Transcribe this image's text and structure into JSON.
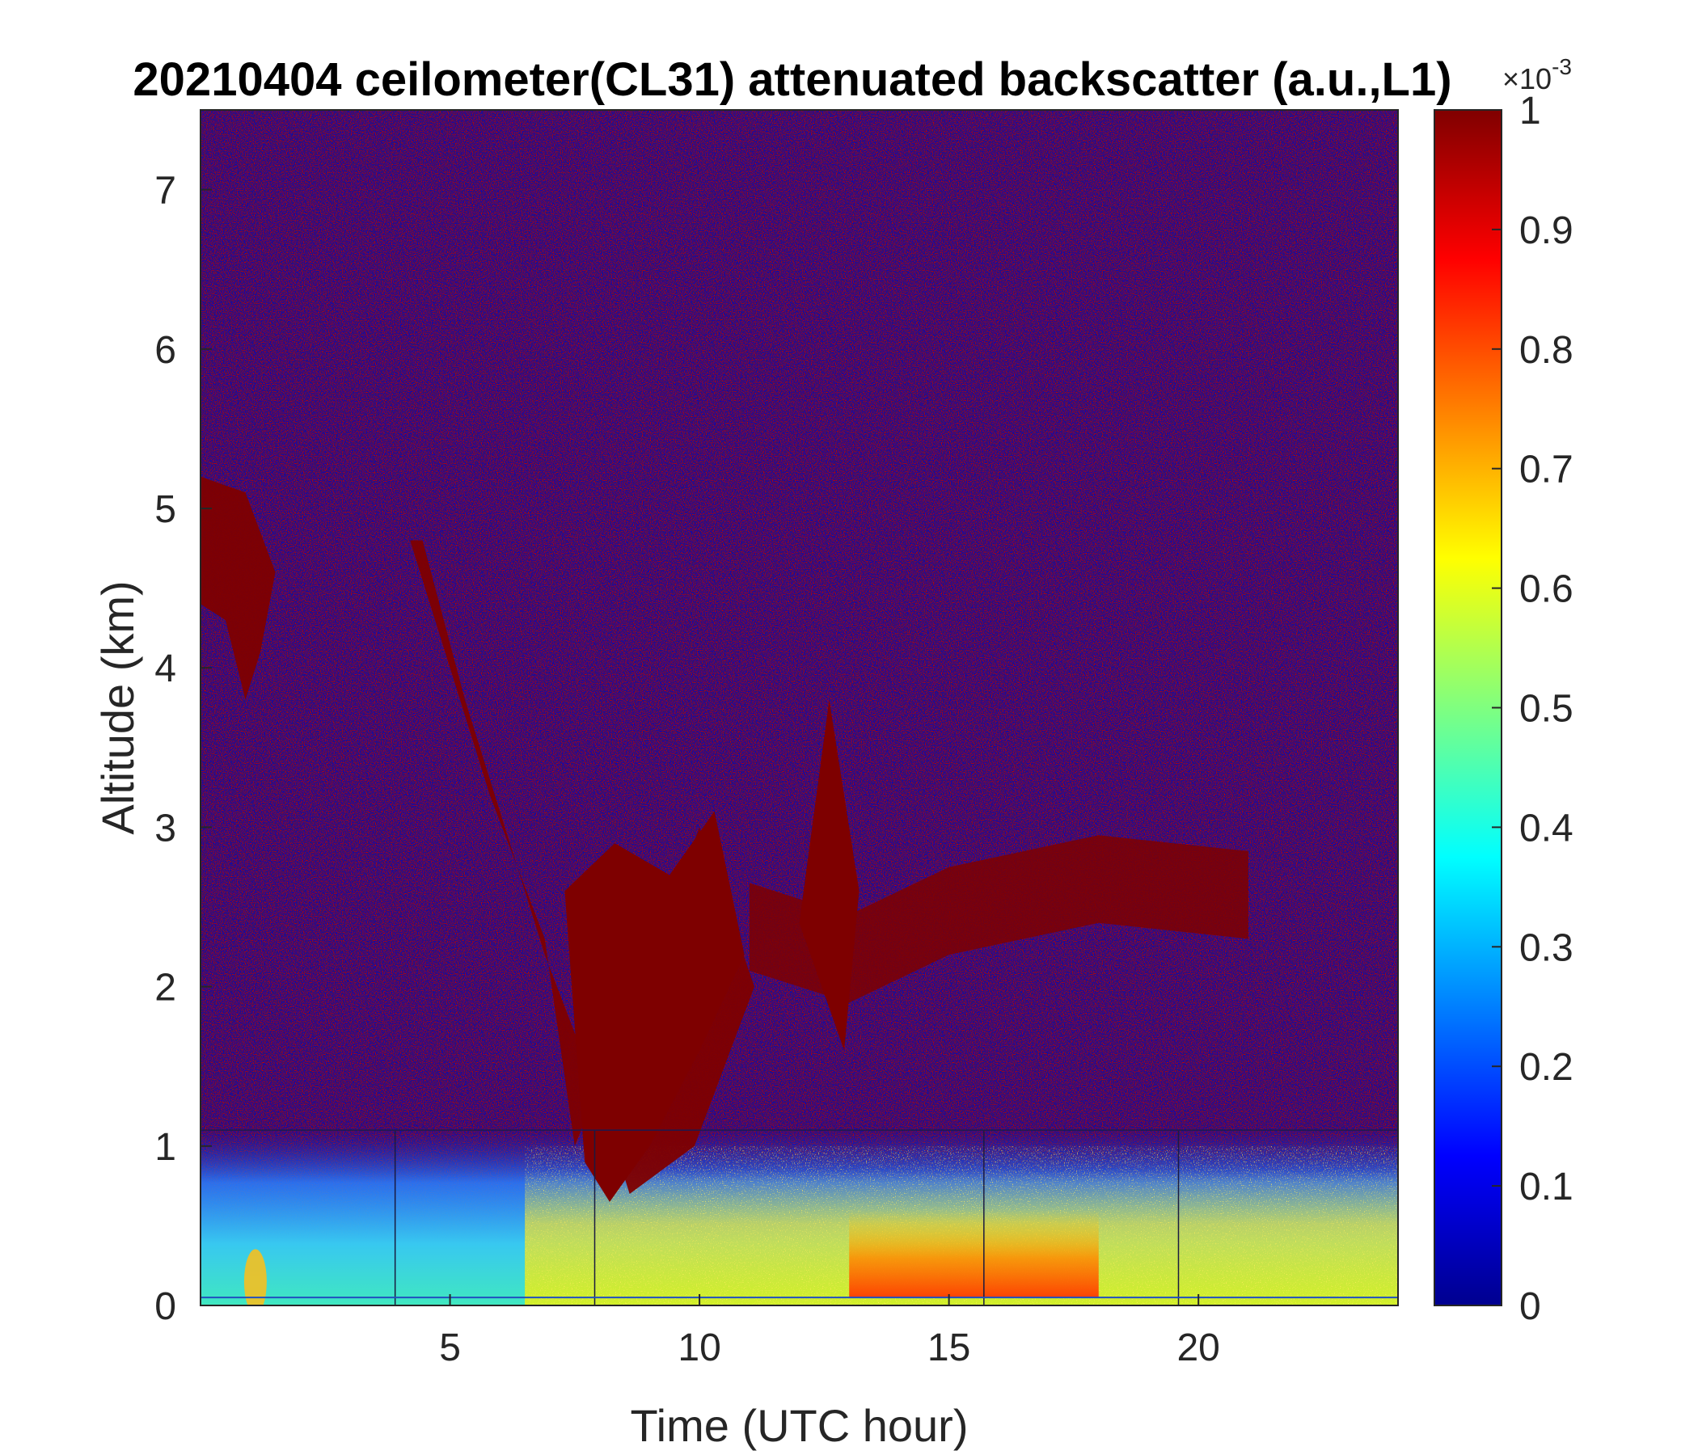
{
  "chart_data": {
    "type": "heatmap",
    "title": "20210404 ceilometer(CL31) attenuated backscatter (a.u.,L1)",
    "xlabel": "Time (UTC hour)",
    "ylabel": "Altitude (km)",
    "xlim": [
      0,
      24
    ],
    "ylim": [
      0,
      7.5
    ],
    "xticks": [
      5,
      10,
      15,
      20
    ],
    "yticks": [
      0,
      1,
      2,
      3,
      4,
      5,
      6,
      7
    ],
    "colorbar": {
      "colormap": "jet",
      "range": [
        0,
        1
      ],
      "exponent_label": "×10",
      "exponent_power": "-3",
      "ticks": [
        "0",
        "0.1",
        "0.2",
        "0.3",
        "0.4",
        "0.5",
        "0.6",
        "0.7",
        "0.8",
        "0.9",
        "1"
      ]
    },
    "features": {
      "surface_layer": {
        "top_km": 0.5,
        "value": 0.5
      },
      "high_backscatter_afternoon": {
        "x_range": [
          13,
          18
        ],
        "top_km": 0.6,
        "value": 0.8
      },
      "descending_cloud": [
        {
          "x": 4.7,
          "y": 4.8
        },
        {
          "x": 6.3,
          "y": 3.2
        },
        {
          "x": 7.4,
          "y": 2.3
        },
        {
          "x": 8.0,
          "y": 1.0
        },
        {
          "x": 9.3,
          "y": 2.0
        },
        {
          "x": 10.5,
          "y": 3.0
        }
      ],
      "mid_cloud_band": [
        {
          "x": 11.0,
          "y": 2.4
        },
        {
          "x": 13.0,
          "y": 2.2
        },
        {
          "x": 15.0,
          "y": 2.5
        },
        {
          "x": 18.0,
          "y": 2.7
        },
        {
          "x": 21.0,
          "y": 2.6
        }
      ],
      "early_cloud": {
        "x_range": [
          0,
          1.5
        ],
        "y_range": [
          3.8,
          5.2
        ]
      }
    }
  }
}
